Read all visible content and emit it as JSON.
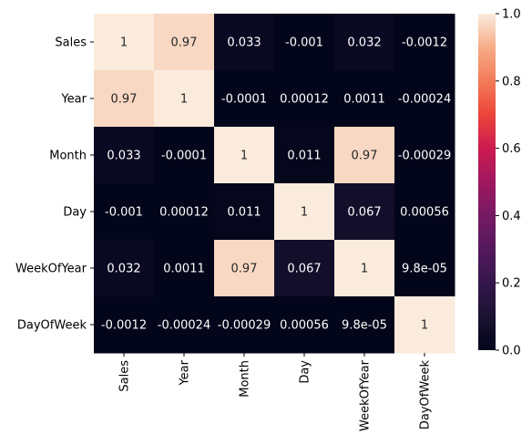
{
  "chart_data": {
    "type": "heatmap",
    "x_categories": [
      "Sales",
      "Year",
      "Month",
      "Day",
      "WeekOfYear",
      "DayOfWeek"
    ],
    "y_categories": [
      "Sales",
      "Year",
      "Month",
      "Day",
      "WeekOfYear",
      "DayOfWeek"
    ],
    "values": [
      [
        1,
        0.97,
        0.033,
        -0.001,
        0.032,
        -0.0012
      ],
      [
        0.97,
        1,
        -0.0001,
        0.00012,
        0.0011,
        -0.00024
      ],
      [
        0.033,
        -0.0001,
        1,
        0.011,
        0.97,
        -0.00029
      ],
      [
        -0.001,
        0.00012,
        0.011,
        1,
        0.067,
        0.00056
      ],
      [
        0.032,
        0.0011,
        0.97,
        0.067,
        1,
        9.8e-05
      ],
      [
        -0.0012,
        -0.00024,
        -0.00029,
        0.00056,
        9.8e-05,
        1
      ]
    ],
    "annotations": [
      [
        "1",
        "0.97",
        "0.033",
        "-0.001",
        "0.032",
        "-0.0012"
      ],
      [
        "0.97",
        "1",
        "-0.0001",
        "0.00012",
        "0.0011",
        "-0.00024"
      ],
      [
        "0.033",
        "-0.0001",
        "1",
        "0.011",
        "0.97",
        "-0.00029"
      ],
      [
        "-0.001",
        "0.00012",
        "0.011",
        "1",
        "0.067",
        "0.00056"
      ],
      [
        "0.032",
        "0.0011",
        "0.97",
        "0.067",
        "1",
        "9.8e-05"
      ],
      [
        "-0.0012",
        "-0.00024",
        "-0.00029",
        "0.00056",
        "9.8e-05",
        "1"
      ]
    ],
    "colorbar": {
      "range": [
        0,
        1
      ],
      "ticks": [
        0.0,
        0.2,
        0.4,
        0.6,
        0.8,
        1.0
      ],
      "tick_labels": [
        "0.0",
        "0.2",
        "0.4",
        "0.6",
        "0.8",
        "1.0"
      ]
    },
    "colormap": "rocket",
    "title": "",
    "xlabel": "",
    "ylabel": ""
  }
}
